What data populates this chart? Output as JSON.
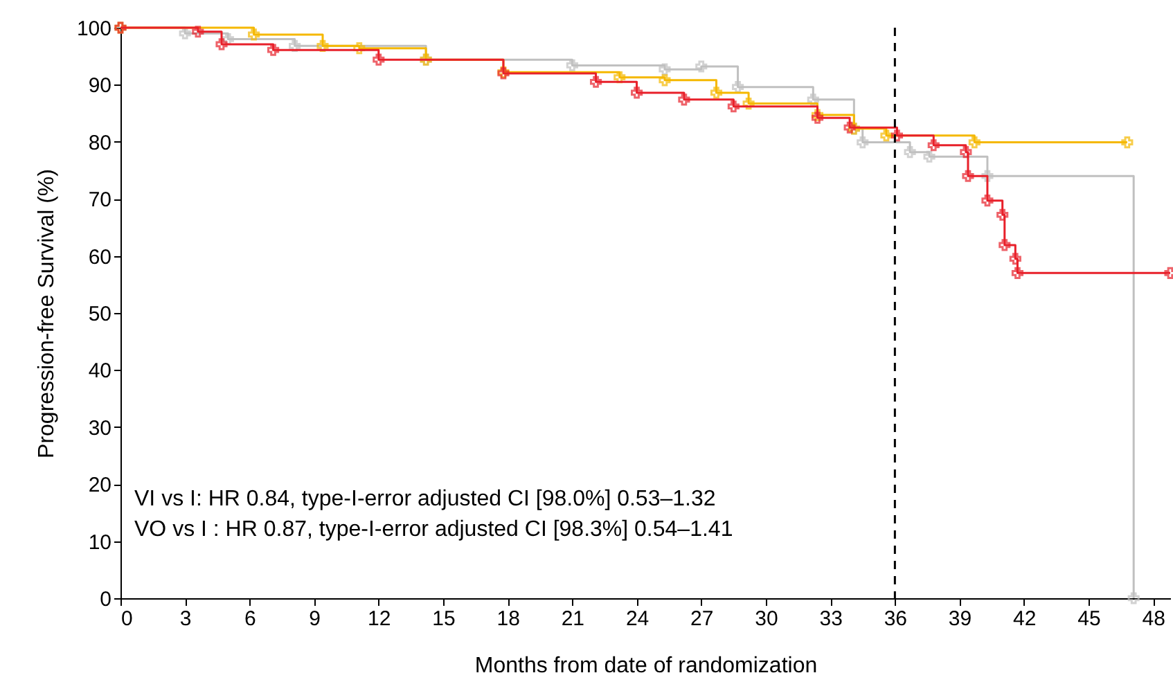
{
  "chart_data": {
    "type": "step",
    "xlabel": "Months from date of randomization",
    "ylabel": "Progression-free Survival (%)",
    "xlim": [
      0,
      48.8
    ],
    "ylim": [
      0,
      100
    ],
    "xticks": [
      0,
      3,
      6,
      9,
      12,
      15,
      18,
      21,
      24,
      27,
      30,
      33,
      36,
      39,
      42,
      45,
      48
    ],
    "yticks": [
      0,
      10,
      20,
      30,
      40,
      50,
      60,
      70,
      80,
      90,
      100
    ],
    "grid": false,
    "marker": "cross",
    "line_style": "solid",
    "series": [
      {
        "color": "#c0c0c0",
        "x": [
          0,
          3,
          5,
          8.1,
          14.2,
          21,
          25.3,
          27,
          28.7,
          32.2,
          34.1,
          34.5,
          36.7,
          37.6,
          40.3,
          47.1
        ],
        "values": [
          100,
          99,
          98,
          96.8,
          94.4,
          93.4,
          92.7,
          93.2,
          89.6,
          87.4,
          82.3,
          79.9,
          78.2,
          77.4,
          74,
          0
        ]
      },
      {
        "color": "#f5b800",
        "x": [
          0,
          6.2,
          9.4,
          11.1,
          14.2,
          17.8,
          23.2,
          25.3,
          27.7,
          29.2,
          32.4,
          34.1,
          35.6,
          39.7,
          46.8
        ],
        "values": [
          100,
          98.8,
          96.8,
          96.4,
          94.4,
          92.2,
          91.3,
          90.8,
          88.6,
          86.7,
          84.7,
          82.3,
          81.1,
          79.9,
          79.9
        ]
      },
      {
        "color": "#e8202a",
        "x": [
          0,
          3.6,
          4.7,
          7.1,
          12,
          17.8,
          22.1,
          24,
          26.2,
          28.5,
          32.4,
          33.9,
          36.1,
          37.8,
          39.3,
          39.4,
          40.3,
          41,
          41.1,
          41.6,
          41.7,
          48.8
        ],
        "values": [
          100,
          99.3,
          97.1,
          96.1,
          94.4,
          92,
          90.5,
          88.6,
          87.4,
          86.2,
          84.2,
          82.5,
          81.1,
          79.4,
          78.2,
          74,
          69.7,
          67.2,
          61.9,
          59.5,
          57,
          57
        ]
      }
    ],
    "ref_lines": [
      {
        "axis": "x",
        "value": 36,
        "color": "#000000",
        "line_style": "dashed"
      }
    ],
    "annotations": [
      "VI vs I: HR 0.84, type-I-error adjusted CI [98.0%] 0.53–1.32",
      "VO vs I : HR 0.87, type-I-error adjusted CI [98.3%] 0.54–1.41"
    ]
  }
}
